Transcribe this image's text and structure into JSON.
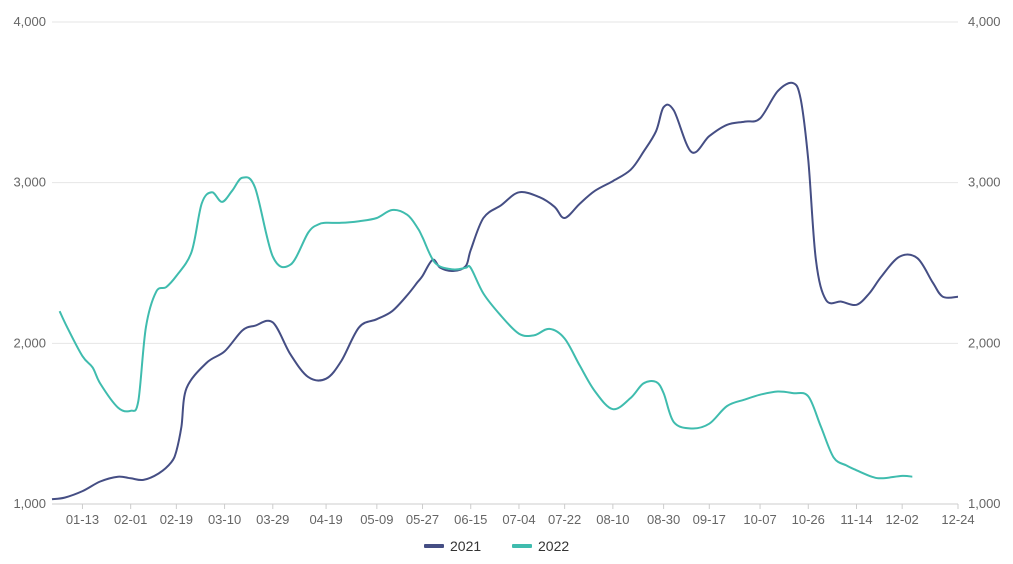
{
  "chart_data": {
    "type": "line",
    "title": "",
    "xlabel": "",
    "ylabel": "",
    "ylim": [
      1000,
      4000
    ],
    "yticks": [
      1000,
      2000,
      3000,
      4000
    ],
    "ytick_labels": [
      "1,000",
      "2,000",
      "3,000",
      "4,000"
    ],
    "y_right_axis_mirror": true,
    "grid": "horizontal",
    "legend_position": "bottom-center",
    "x_ticks": [
      "01-13",
      "02-01",
      "02-19",
      "03-10",
      "03-29",
      "04-19",
      "05-09",
      "05-27",
      "06-15",
      "07-04",
      "07-22",
      "08-10",
      "08-30",
      "09-17",
      "10-07",
      "10-26",
      "11-14",
      "12-02",
      "12-24"
    ],
    "series": [
      {
        "name": "2021",
        "color": "#454e84",
        "x": [
          "01-01",
          "01-06",
          "01-13",
          "01-20",
          "01-27",
          "02-01",
          "02-06",
          "02-12",
          "02-17",
          "02-19",
          "02-21",
          "02-23",
          "03-03",
          "03-10",
          "03-17",
          "03-22",
          "03-29",
          "04-05",
          "04-12",
          "04-19",
          "04-25",
          "05-02",
          "05-09",
          "05-15",
          "05-21",
          "05-25",
          "05-27",
          "05-31",
          "06-03",
          "06-08",
          "06-13",
          "06-15",
          "06-20",
          "06-27",
          "07-04",
          "07-12",
          "07-18",
          "07-22",
          "07-28",
          "08-03",
          "08-10",
          "08-17",
          "08-22",
          "08-27",
          "08-30",
          "09-03",
          "09-10",
          "09-17",
          "09-24",
          "10-01",
          "10-07",
          "10-14",
          "10-20",
          "10-23",
          "10-26",
          "10-29",
          "11-02",
          "11-08",
          "11-14",
          "11-19",
          "11-24",
          "12-01",
          "12-08",
          "12-14",
          "12-18",
          "12-24"
        ],
        "values": [
          1030,
          1040,
          1080,
          1140,
          1170,
          1160,
          1150,
          1190,
          1260,
          1330,
          1480,
          1720,
          1880,
          1950,
          2080,
          2110,
          2130,
          1930,
          1790,
          1780,
          1890,
          2100,
          2150,
          2200,
          2300,
          2380,
          2420,
          2520,
          2470,
          2450,
          2480,
          2580,
          2780,
          2860,
          2940,
          2910,
          2850,
          2780,
          2870,
          2950,
          3010,
          3080,
          3190,
          3320,
          3470,
          3450,
          3190,
          3290,
          3360,
          3380,
          3400,
          3570,
          3620,
          3520,
          3140,
          2520,
          2270,
          2260,
          2240,
          2310,
          2420,
          2540,
          2530,
          2380,
          2290,
          2290
        ]
      },
      {
        "name": "2022",
        "color": "#3fbcae",
        "x": [
          "01-04",
          "01-07",
          "01-13",
          "01-17",
          "01-20",
          "01-27",
          "02-01",
          "02-04",
          "02-07",
          "02-11",
          "02-15",
          "02-19",
          "02-25",
          "03-01",
          "03-05",
          "03-09",
          "03-13",
          "03-17",
          "03-22",
          "03-29",
          "04-05",
          "04-12",
          "04-16",
          "04-19",
          "04-25",
          "05-02",
          "05-09",
          "05-15",
          "05-21",
          "05-25",
          "05-27",
          "06-01",
          "06-08",
          "06-13",
          "06-15",
          "06-20",
          "06-27",
          "07-04",
          "07-10",
          "07-16",
          "07-22",
          "07-28",
          "08-03",
          "08-10",
          "08-17",
          "08-22",
          "08-27",
          "08-30",
          "09-03",
          "09-10",
          "09-17",
          "09-24",
          "10-01",
          "10-07",
          "10-14",
          "10-20",
          "10-26",
          "10-31",
          "11-05",
          "11-10",
          "11-14",
          "11-20",
          "11-24",
          "12-02",
          "12-06"
        ],
        "values": [
          2200,
          2100,
          1920,
          1850,
          1750,
          1600,
          1580,
          1640,
          2100,
          2320,
          2350,
          2420,
          2570,
          2870,
          2940,
          2880,
          2950,
          3030,
          2970,
          2540,
          2490,
          2690,
          2740,
          2750,
          2750,
          2760,
          2780,
          2830,
          2800,
          2720,
          2660,
          2500,
          2460,
          2470,
          2470,
          2310,
          2170,
          2060,
          2050,
          2090,
          2030,
          1860,
          1700,
          1590,
          1660,
          1750,
          1760,
          1690,
          1510,
          1470,
          1500,
          1610,
          1650,
          1680,
          1700,
          1690,
          1670,
          1480,
          1290,
          1240,
          1210,
          1170,
          1160,
          1175,
          1170
        ]
      }
    ]
  }
}
